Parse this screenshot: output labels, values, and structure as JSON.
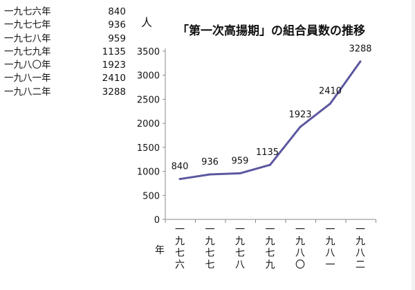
{
  "table": {
    "rows": [
      {
        "year": "一九七六年",
        "value": "840"
      },
      {
        "year": "一九七七年",
        "value": "936"
      },
      {
        "year": "一九七八年",
        "value": "959"
      },
      {
        "year": "一九七九年",
        "value": "1135"
      },
      {
        "year": "一九八〇年",
        "value": "1923"
      },
      {
        "year": "一九八一年",
        "value": "2410"
      },
      {
        "year": "一九八二年",
        "value": "3288"
      }
    ]
  },
  "chart_data": {
    "type": "line",
    "title": "「第一次高揚期」の組合員数の推移",
    "ylabel": "人",
    "xlabel": "年",
    "categories": [
      "一九七六",
      "一九七七",
      "一九七八",
      "一九七九",
      "一九八〇",
      "一九八一",
      "一九八二"
    ],
    "series": [
      {
        "values": [
          840,
          936,
          959,
          1135,
          1923,
          2410,
          3288
        ],
        "color": "#5b57a0"
      }
    ],
    "data_labels": [
      "840",
      "936",
      "959",
      "1135",
      "1923",
      "2410",
      "3288"
    ],
    "yticks": [
      0,
      500,
      1000,
      1500,
      2000,
      2500,
      3000,
      3500
    ],
    "ylim": [
      0,
      3500
    ],
    "grid": false,
    "legend": "none"
  }
}
